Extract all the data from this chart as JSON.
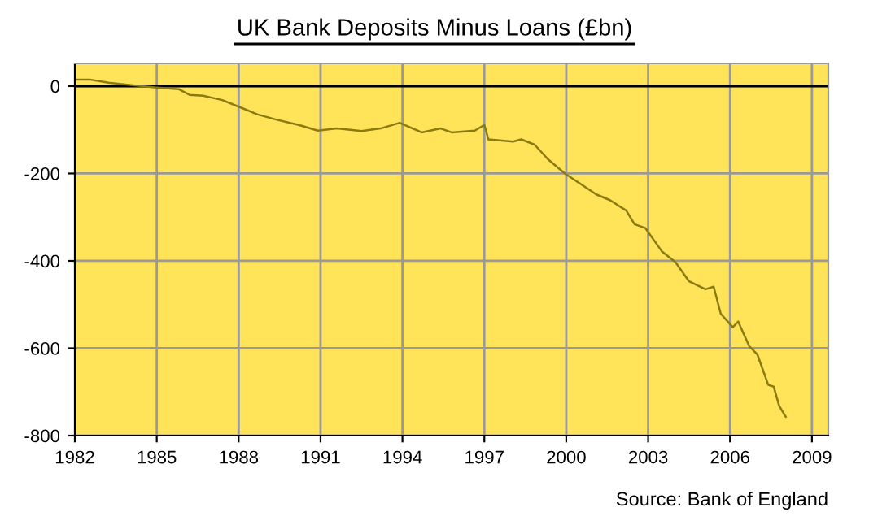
{
  "chart_data": {
    "type": "line",
    "title": "UK Bank Deposits Minus Loans (£bn)",
    "x": [
      1982.0,
      1982.54,
      1983.23,
      1984.13,
      1984.92,
      1985.8,
      1986.2,
      1986.7,
      1987.4,
      1988.0,
      1988.7,
      1989.4,
      1990.2,
      1990.9,
      1991.6,
      1992.5,
      1993.2,
      1993.9,
      1994.7,
      1995.4,
      1995.8,
      1996.65,
      1997.0,
      1997.15,
      1998.05,
      1998.35,
      1998.84,
      1999.34,
      1999.97,
      2000.5,
      2001.1,
      2001.6,
      2002.2,
      2002.5,
      2002.9,
      2003.5,
      2004.0,
      2004.5,
      2005.1,
      2005.4,
      2005.66,
      2006.1,
      2006.3,
      2006.7,
      2007.0,
      2007.4,
      2007.6,
      2007.8,
      2008.04
    ],
    "series": [
      {
        "color": "#8a7a10",
        "values": [
          15,
          15,
          8,
          2,
          -3,
          -7,
          -20,
          -22,
          -32,
          -47,
          -65,
          -77,
          -89,
          -102,
          -97,
          -103,
          -97,
          -84,
          -106,
          -97,
          -106,
          -102,
          -89,
          -122,
          -127,
          -122,
          -134,
          -168,
          -201,
          -223,
          -248,
          -261,
          -285,
          -316,
          -325,
          -378,
          -403,
          -447,
          -465,
          -459,
          -521,
          -552,
          -539,
          -595,
          -614,
          -684,
          -688,
          -732,
          -757
        ]
      }
    ],
    "xlim": [
      1982,
      2009.6
    ],
    "xticks": [
      1982,
      1985,
      1988,
      1991,
      1994,
      1997,
      2000,
      2003,
      2006,
      2009
    ],
    "ylim": [
      -800,
      52
    ],
    "yticks": [
      -800,
      -600,
      -400,
      -200,
      0
    ],
    "grid": true,
    "legend": false,
    "marker": "none",
    "line_style": "solid",
    "ref_lines": [
      {
        "axis": "y",
        "value": 0,
        "color": "#000000"
      }
    ],
    "annotations": [
      "Source: Bank of England"
    ]
  }
}
